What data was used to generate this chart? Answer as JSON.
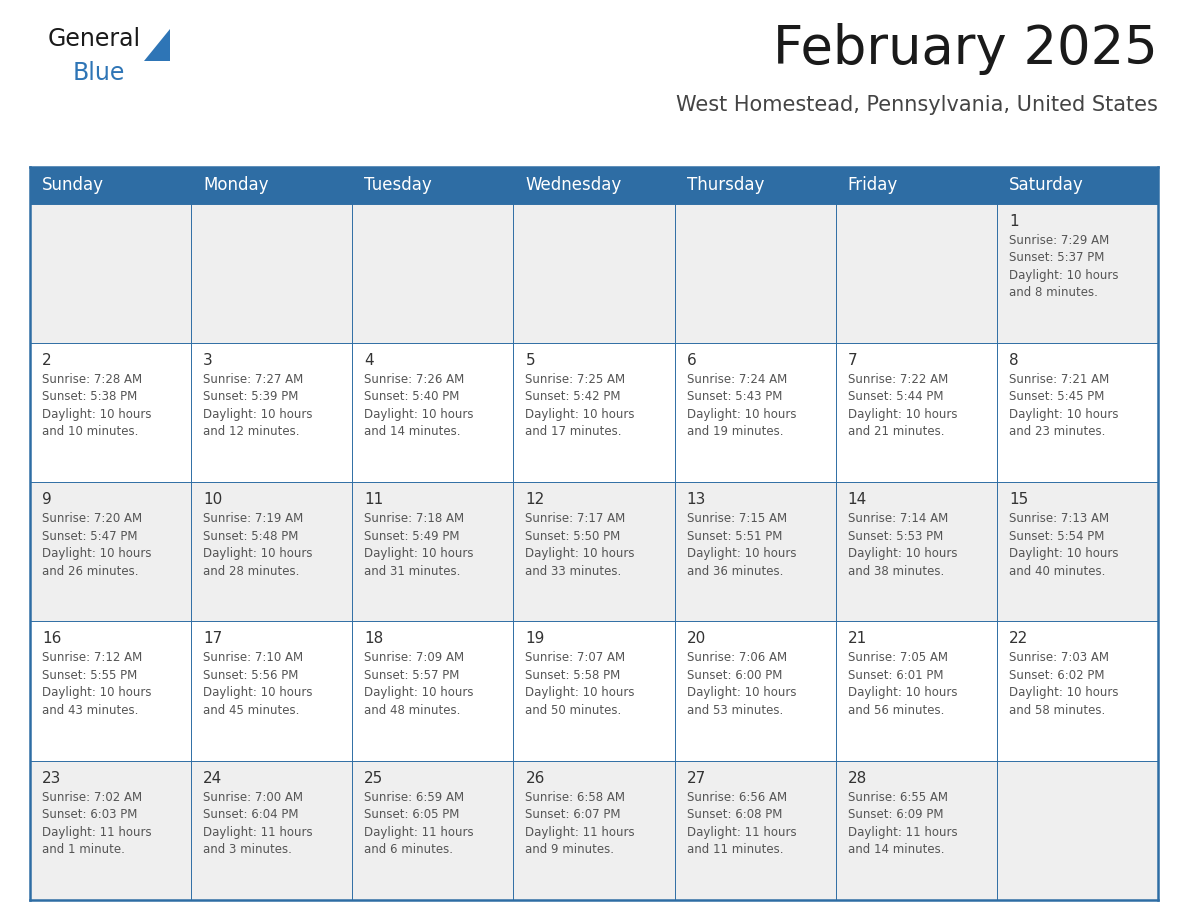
{
  "title": "February 2025",
  "subtitle": "West Homestead, Pennsylvania, United States",
  "header_bg": "#2e6da4",
  "header_text_color": "#ffffff",
  "cell_bg_odd": "#efefef",
  "cell_bg_even": "#ffffff",
  "border_color": "#2e6da4",
  "text_color": "#555555",
  "day_number_color": "#333333",
  "days_of_week": [
    "Sunday",
    "Monday",
    "Tuesday",
    "Wednesday",
    "Thursday",
    "Friday",
    "Saturday"
  ],
  "weeks": [
    [
      {
        "day": "",
        "info": ""
      },
      {
        "day": "",
        "info": ""
      },
      {
        "day": "",
        "info": ""
      },
      {
        "day": "",
        "info": ""
      },
      {
        "day": "",
        "info": ""
      },
      {
        "day": "",
        "info": ""
      },
      {
        "day": "1",
        "info": "Sunrise: 7:29 AM\nSunset: 5:37 PM\nDaylight: 10 hours\nand 8 minutes."
      }
    ],
    [
      {
        "day": "2",
        "info": "Sunrise: 7:28 AM\nSunset: 5:38 PM\nDaylight: 10 hours\nand 10 minutes."
      },
      {
        "day": "3",
        "info": "Sunrise: 7:27 AM\nSunset: 5:39 PM\nDaylight: 10 hours\nand 12 minutes."
      },
      {
        "day": "4",
        "info": "Sunrise: 7:26 AM\nSunset: 5:40 PM\nDaylight: 10 hours\nand 14 minutes."
      },
      {
        "day": "5",
        "info": "Sunrise: 7:25 AM\nSunset: 5:42 PM\nDaylight: 10 hours\nand 17 minutes."
      },
      {
        "day": "6",
        "info": "Sunrise: 7:24 AM\nSunset: 5:43 PM\nDaylight: 10 hours\nand 19 minutes."
      },
      {
        "day": "7",
        "info": "Sunrise: 7:22 AM\nSunset: 5:44 PM\nDaylight: 10 hours\nand 21 minutes."
      },
      {
        "day": "8",
        "info": "Sunrise: 7:21 AM\nSunset: 5:45 PM\nDaylight: 10 hours\nand 23 minutes."
      }
    ],
    [
      {
        "day": "9",
        "info": "Sunrise: 7:20 AM\nSunset: 5:47 PM\nDaylight: 10 hours\nand 26 minutes."
      },
      {
        "day": "10",
        "info": "Sunrise: 7:19 AM\nSunset: 5:48 PM\nDaylight: 10 hours\nand 28 minutes."
      },
      {
        "day": "11",
        "info": "Sunrise: 7:18 AM\nSunset: 5:49 PM\nDaylight: 10 hours\nand 31 minutes."
      },
      {
        "day": "12",
        "info": "Sunrise: 7:17 AM\nSunset: 5:50 PM\nDaylight: 10 hours\nand 33 minutes."
      },
      {
        "day": "13",
        "info": "Sunrise: 7:15 AM\nSunset: 5:51 PM\nDaylight: 10 hours\nand 36 minutes."
      },
      {
        "day": "14",
        "info": "Sunrise: 7:14 AM\nSunset: 5:53 PM\nDaylight: 10 hours\nand 38 minutes."
      },
      {
        "day": "15",
        "info": "Sunrise: 7:13 AM\nSunset: 5:54 PM\nDaylight: 10 hours\nand 40 minutes."
      }
    ],
    [
      {
        "day": "16",
        "info": "Sunrise: 7:12 AM\nSunset: 5:55 PM\nDaylight: 10 hours\nand 43 minutes."
      },
      {
        "day": "17",
        "info": "Sunrise: 7:10 AM\nSunset: 5:56 PM\nDaylight: 10 hours\nand 45 minutes."
      },
      {
        "day": "18",
        "info": "Sunrise: 7:09 AM\nSunset: 5:57 PM\nDaylight: 10 hours\nand 48 minutes."
      },
      {
        "day": "19",
        "info": "Sunrise: 7:07 AM\nSunset: 5:58 PM\nDaylight: 10 hours\nand 50 minutes."
      },
      {
        "day": "20",
        "info": "Sunrise: 7:06 AM\nSunset: 6:00 PM\nDaylight: 10 hours\nand 53 minutes."
      },
      {
        "day": "21",
        "info": "Sunrise: 7:05 AM\nSunset: 6:01 PM\nDaylight: 10 hours\nand 56 minutes."
      },
      {
        "day": "22",
        "info": "Sunrise: 7:03 AM\nSunset: 6:02 PM\nDaylight: 10 hours\nand 58 minutes."
      }
    ],
    [
      {
        "day": "23",
        "info": "Sunrise: 7:02 AM\nSunset: 6:03 PM\nDaylight: 11 hours\nand 1 minute."
      },
      {
        "day": "24",
        "info": "Sunrise: 7:00 AM\nSunset: 6:04 PM\nDaylight: 11 hours\nand 3 minutes."
      },
      {
        "day": "25",
        "info": "Sunrise: 6:59 AM\nSunset: 6:05 PM\nDaylight: 11 hours\nand 6 minutes."
      },
      {
        "day": "26",
        "info": "Sunrise: 6:58 AM\nSunset: 6:07 PM\nDaylight: 11 hours\nand 9 minutes."
      },
      {
        "day": "27",
        "info": "Sunrise: 6:56 AM\nSunset: 6:08 PM\nDaylight: 11 hours\nand 11 minutes."
      },
      {
        "day": "28",
        "info": "Sunrise: 6:55 AM\nSunset: 6:09 PM\nDaylight: 11 hours\nand 14 minutes."
      },
      {
        "day": "",
        "info": ""
      }
    ]
  ],
  "logo_general_color": "#1a1a1a",
  "logo_blue_color": "#2e75b6",
  "title_fontsize": 38,
  "subtitle_fontsize": 15,
  "header_fontsize": 12,
  "day_num_fontsize": 11,
  "info_fontsize": 8.5
}
